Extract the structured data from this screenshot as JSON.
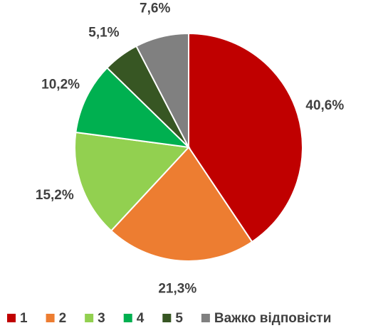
{
  "chart_data": {
    "type": "pie",
    "categories": [
      "1",
      "2",
      "3",
      "4",
      "5",
      "Важко відповісти"
    ],
    "values": [
      40.6,
      21.3,
      15.2,
      10.2,
      5.1,
      7.6
    ],
    "value_labels": [
      "40,6%",
      "21,3%",
      "15,2%",
      "10,2%",
      "5,1%",
      "7,6%"
    ],
    "colors": [
      "#c00000",
      "#ed7d31",
      "#92d050",
      "#00b050",
      "#375623",
      "#808080"
    ],
    "legend": "bottom"
  }
}
